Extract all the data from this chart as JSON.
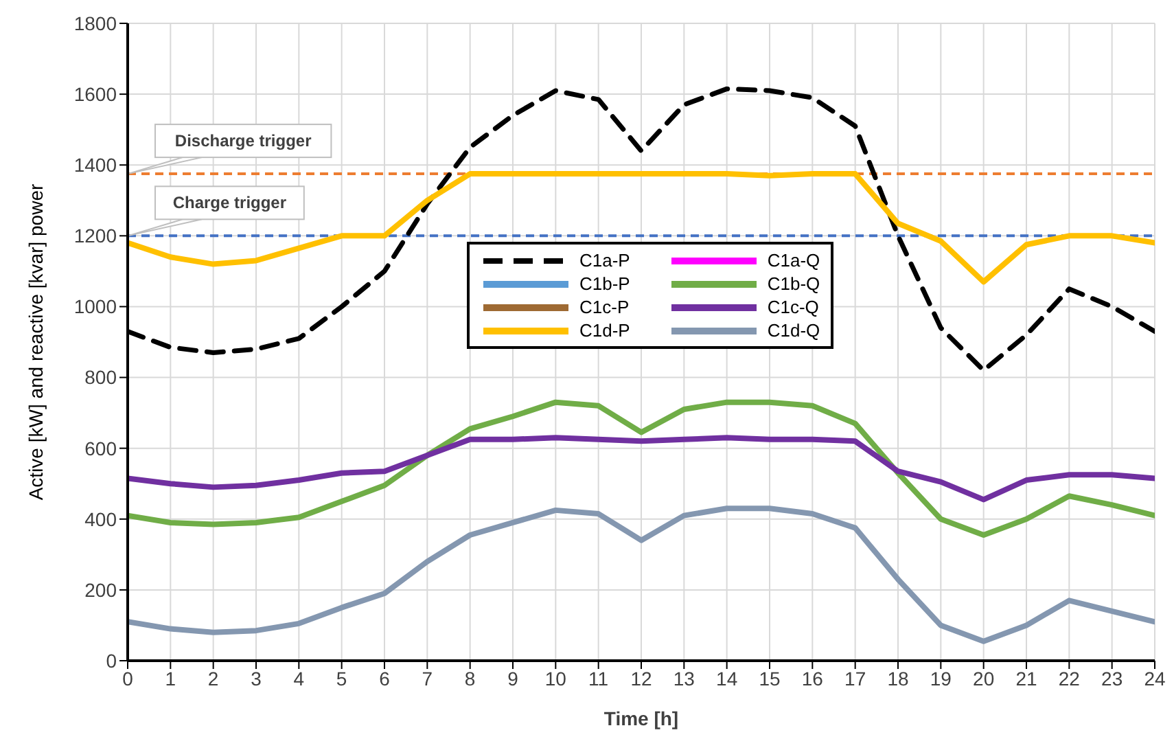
{
  "chart_data": {
    "type": "line",
    "xlabel": "Time [h]",
    "ylabel": "Active [kW] and reactive [kvar] power",
    "x": [
      0,
      1,
      2,
      3,
      4,
      5,
      6,
      7,
      8,
      9,
      10,
      11,
      12,
      13,
      14,
      15,
      16,
      17,
      18,
      19,
      20,
      21,
      22,
      23,
      24
    ],
    "xlim": [
      0,
      24
    ],
    "xticks": [
      0,
      1,
      2,
      3,
      4,
      5,
      6,
      7,
      8,
      9,
      10,
      11,
      12,
      13,
      14,
      15,
      16,
      17,
      18,
      19,
      20,
      21,
      22,
      23,
      24
    ],
    "ylim": [
      0,
      1800
    ],
    "yticks": [
      0,
      200,
      400,
      600,
      800,
      1000,
      1200,
      1400,
      1600,
      1800
    ],
    "grid": true,
    "legend": "center",
    "marker": "none",
    "ref_lines": [
      {
        "axis": "y",
        "value": 1375,
        "label": "Discharge trigger",
        "color": "#ed7d31",
        "line_style": "dashed"
      },
      {
        "axis": "y",
        "value": 1200,
        "label": "Charge trigger",
        "color": "#4472c4",
        "line_style": "dashed"
      }
    ],
    "series": [
      {
        "name": "C1a-P",
        "color": "#000000",
        "line_style": "dashed",
        "values": [
          930,
          885,
          870,
          880,
          910,
          1000,
          1100,
          1290,
          1450,
          1540,
          1610,
          1585,
          1440,
          1570,
          1615,
          1610,
          1590,
          1510,
          1200,
          940,
          820,
          920,
          1050,
          1000,
          930
        ]
      },
      {
        "name": "C1a-Q",
        "color": "#ff00ff",
        "values": [
          null,
          null,
          null,
          null,
          null,
          null,
          null,
          null,
          null,
          null,
          null,
          null,
          null,
          null,
          null,
          null,
          null,
          null,
          null,
          null,
          null,
          null,
          null,
          null,
          null
        ]
      },
      {
        "name": "C1b-P",
        "color": "#5b9bd5",
        "values": [
          null,
          null,
          null,
          null,
          null,
          null,
          null,
          null,
          null,
          null,
          null,
          null,
          null,
          null,
          null,
          null,
          null,
          null,
          null,
          null,
          null,
          null,
          null,
          null,
          null
        ]
      },
      {
        "name": "C1b-Q",
        "color": "#70ad47",
        "values": [
          410,
          390,
          385,
          390,
          405,
          450,
          495,
          580,
          655,
          690,
          730,
          720,
          645,
          710,
          730,
          730,
          720,
          670,
          530,
          400,
          355,
          400,
          465,
          440,
          410
        ]
      },
      {
        "name": "C1c-P",
        "color": "#9e6a33",
        "values": [
          null,
          null,
          null,
          null,
          null,
          null,
          null,
          null,
          null,
          null,
          null,
          null,
          null,
          null,
          null,
          null,
          null,
          null,
          null,
          null,
          null,
          null,
          null,
          null,
          null
        ]
      },
      {
        "name": "C1c-Q",
        "color": "#7030a0",
        "values": [
          515,
          500,
          490,
          495,
          510,
          530,
          535,
          580,
          625,
          625,
          630,
          625,
          620,
          625,
          630,
          625,
          625,
          620,
          535,
          505,
          455,
          510,
          525,
          525,
          515
        ]
      },
      {
        "name": "C1d-P",
        "color": "#ffc000",
        "values": [
          1180,
          1140,
          1120,
          1130,
          1165,
          1200,
          1200,
          1300,
          1375,
          1375,
          1375,
          1375,
          1375,
          1375,
          1375,
          1370,
          1375,
          1375,
          1235,
          1185,
          1070,
          1175,
          1200,
          1200,
          1180
        ]
      },
      {
        "name": "C1d-Q",
        "color": "#8497b0",
        "values": [
          110,
          90,
          80,
          85,
          105,
          150,
          190,
          280,
          355,
          390,
          425,
          415,
          340,
          410,
          430,
          430,
          415,
          375,
          230,
          100,
          55,
          100,
          170,
          140,
          110
        ]
      }
    ]
  }
}
